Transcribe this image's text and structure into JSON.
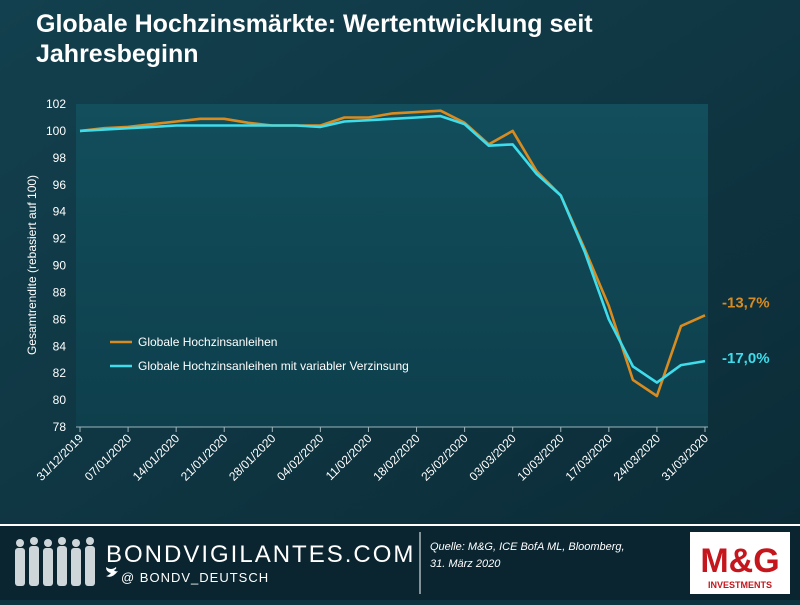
{
  "chart_data": {
    "type": "line",
    "title": "Globale Hochzinsmärkte: Wertentwicklung seit Jahresbeginn",
    "y_label": "Gesamtrendite (rebasiert auf 100)",
    "categories": [
      "31/12/2019",
      null,
      "07/01/2020",
      null,
      "14/01/2020",
      null,
      "21/01/2020",
      null,
      "28/01/2020",
      null,
      "04/02/2020",
      null,
      "11/02/2020",
      null,
      "18/02/2020",
      null,
      "25/02/2020",
      null,
      "03/03/2020",
      null,
      "10/03/2020",
      null,
      "17/03/2020",
      null,
      "24/03/2020",
      null,
      "31/03/2020"
    ],
    "series": [
      {
        "name": "Globale Hochzinsanleihen",
        "color": "#d98b1f",
        "end_label": "-13,7%",
        "values": [
          100,
          100.2,
          100.3,
          100.5,
          100.7,
          100.9,
          100.9,
          100.6,
          100.4,
          100.4,
          100.4,
          101.0,
          101.0,
          101.3,
          101.4,
          101.5,
          100.6,
          99.0,
          100.0,
          97.0,
          95.2,
          91.2,
          87.0,
          81.5,
          80.3,
          85.5,
          86.3
        ]
      },
      {
        "name": "Globale Hochzinsanleihen mit variabler Verzinsung",
        "color": "#3fdcec",
        "end_label": "-17,0%",
        "values": [
          100,
          100.1,
          100.2,
          100.3,
          100.4,
          100.4,
          100.4,
          100.4,
          100.4,
          100.4,
          100.3,
          100.7,
          100.8,
          100.9,
          101.0,
          101.1,
          100.5,
          98.9,
          99.0,
          96.8,
          95.2,
          91.0,
          86.0,
          82.5,
          81.3,
          82.6,
          82.9
        ]
      }
    ],
    "ylim": [
      78,
      102
    ],
    "yticks": [
      78,
      80,
      82,
      84,
      86,
      88,
      90,
      92,
      94,
      96,
      98,
      100,
      102
    ],
    "legend": "bottom-left"
  },
  "footer": {
    "site": "BONDVIGILANTES.COM",
    "handle": "@ BONDV_DEUTSCH",
    "source": "Quelle: M&G, ICE BofA ML, Bloomberg,",
    "date": "31. März 2020",
    "brand": "M&G",
    "brand_sub": "INVESTMENTS"
  }
}
